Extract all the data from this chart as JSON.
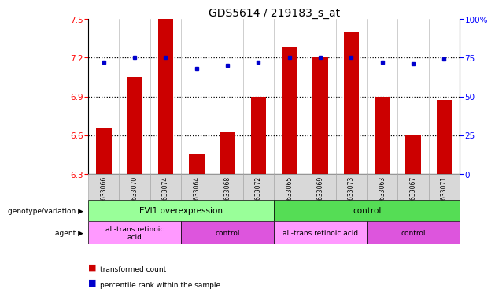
{
  "title": "GDS5614 / 219183_s_at",
  "samples": [
    "GSM1633066",
    "GSM1633070",
    "GSM1633074",
    "GSM1633064",
    "GSM1633068",
    "GSM1633072",
    "GSM1633065",
    "GSM1633069",
    "GSM1633073",
    "GSM1633063",
    "GSM1633067",
    "GSM1633071"
  ],
  "transformed_count": [
    6.65,
    7.05,
    7.5,
    6.45,
    6.62,
    6.9,
    7.28,
    7.2,
    7.4,
    6.9,
    6.6,
    6.87
  ],
  "percentile_rank": [
    72,
    75,
    75,
    68,
    70,
    72,
    75,
    75,
    75,
    72,
    71,
    74
  ],
  "ylim_left": [
    6.3,
    7.5
  ],
  "ylim_right": [
    0,
    100
  ],
  "yticks_left": [
    6.3,
    6.6,
    6.9,
    7.2,
    7.5
  ],
  "yticks_right": [
    0,
    25,
    50,
    75,
    100
  ],
  "bar_color": "#cc0000",
  "dot_color": "#0000cc",
  "bar_bottom": 6.3,
  "genotype_groups": [
    {
      "label": "EVI1 overexpression",
      "start": 0,
      "end": 6,
      "color": "#99ff99"
    },
    {
      "label": "control",
      "start": 6,
      "end": 12,
      "color": "#55dd55"
    }
  ],
  "agent_groups": [
    {
      "label": "all-trans retinoic\nacid",
      "start": 0,
      "end": 3,
      "color": "#ff99ff"
    },
    {
      "label": "control",
      "start": 3,
      "end": 6,
      "color": "#dd55dd"
    },
    {
      "label": "all-trans retinoic acid",
      "start": 6,
      "end": 9,
      "color": "#ff99ff"
    },
    {
      "label": "control",
      "start": 9,
      "end": 12,
      "color": "#dd55dd"
    }
  ],
  "plot_bg": "#ffffff",
  "sample_bg": "#d8d8d8",
  "title_fontsize": 10
}
